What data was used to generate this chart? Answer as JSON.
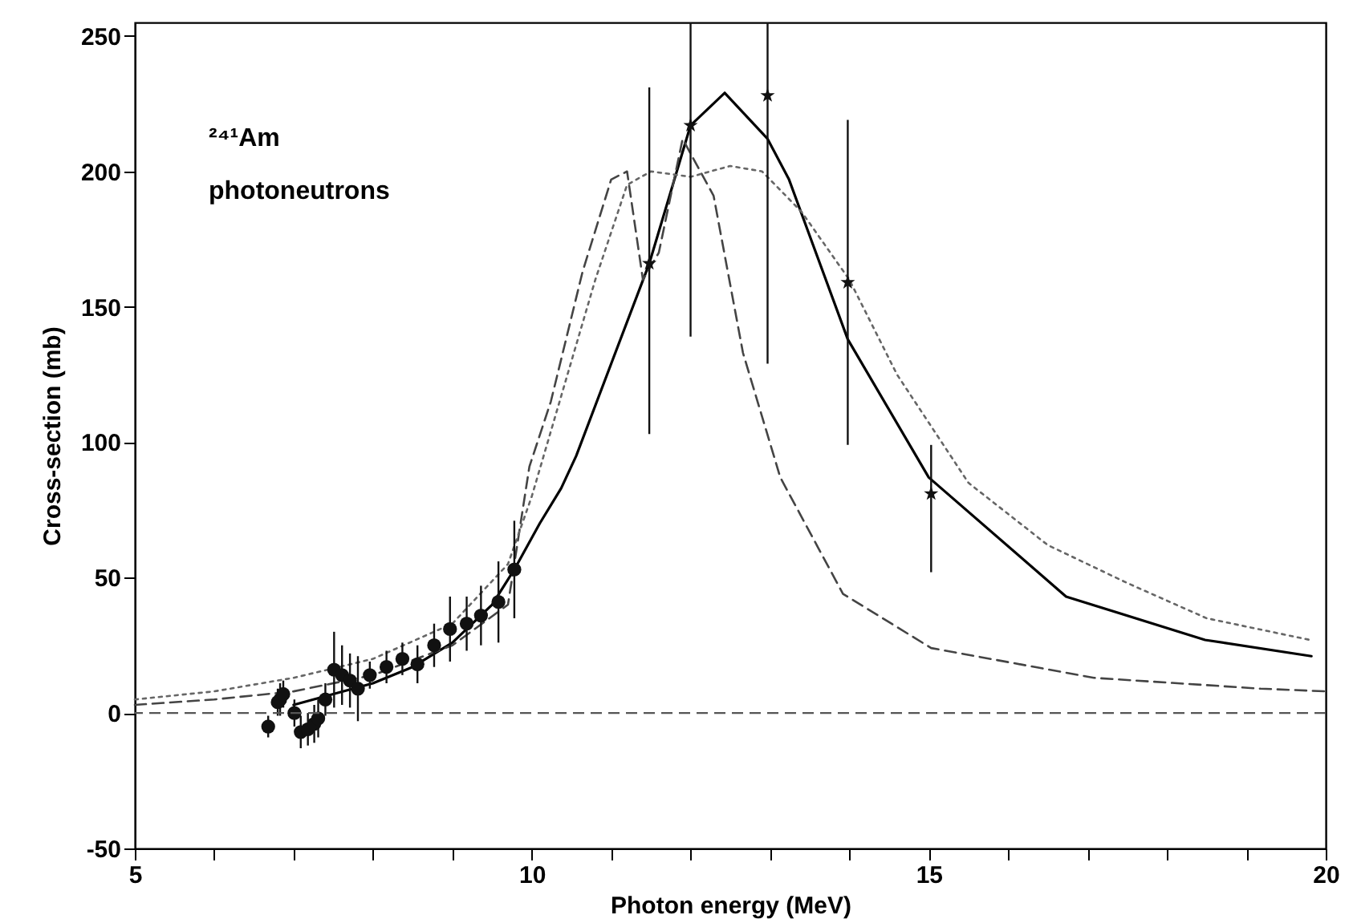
{
  "chart_data": {
    "type": "scatter",
    "xlabel": "Photon energy (MeV)",
    "ylabel": "Cross-section (mb)",
    "annotations": [
      "²⁴¹Am",
      "photoneutrons"
    ],
    "xlim": [
      5,
      20
    ],
    "ylim": [
      -50,
      255
    ],
    "xticks": [
      5,
      {
        "value": 6,
        "label": null
      },
      {
        "value": 7,
        "label": null
      },
      {
        "value": 8,
        "label": null
      },
      {
        "value": 9,
        "label": null
      },
      10,
      {
        "value": 11,
        "label": null
      },
      {
        "value": 12,
        "label": null
      },
      {
        "value": 13,
        "label": null
      },
      {
        "value": 14,
        "label": null
      },
      15,
      {
        "value": 16,
        "label": null
      },
      {
        "value": 17,
        "label": null
      },
      {
        "value": 18,
        "label": null
      },
      {
        "value": 19,
        "label": null
      },
      20
    ],
    "yticks": [
      -50,
      0,
      50,
      100,
      150,
      200,
      250
    ],
    "ref_lines": [
      {
        "axis": "y",
        "value": 0,
        "color": "#555555",
        "line_style": "dashed"
      }
    ],
    "series": [
      {
        "type": "line",
        "color": "#000000",
        "line_style": "solid",
        "x": [
          7.0,
          7.5,
          8.0,
          8.5,
          9.0,
          9.5,
          9.78,
          10.1,
          10.37,
          10.56,
          11.48,
          12.0,
          12.43,
          12.97,
          13.24,
          13.98,
          15.0,
          16.73,
          18.48,
          19.82
        ],
        "values": [
          3,
          7,
          11,
          17,
          26,
          40,
          53,
          70,
          83,
          95,
          166,
          217,
          229,
          212,
          197,
          138,
          87,
          43,
          27,
          21
        ]
      },
      {
        "type": "line",
        "color": "#444444",
        "line_style": "dashed",
        "x": [
          5,
          6,
          7,
          8,
          9,
          9.7,
          9.97,
          10.24,
          10.64,
          11.0,
          11.2,
          11.4,
          11.6,
          11.9,
          12.29,
          12.66,
          13.13,
          13.92,
          15.03,
          17.08,
          19.18,
          20
        ],
        "values": [
          3,
          5,
          8,
          14,
          25,
          40,
          91,
          115,
          163,
          197,
          200,
          160,
          170,
          212,
          191,
          133,
          87,
          44,
          24,
          13,
          9,
          8
        ]
      },
      {
        "type": "line",
        "color": "#666666",
        "line_style": "dotted",
        "x": [
          5,
          6,
          7,
          8,
          9,
          9.7,
          10.0,
          10.4,
          10.8,
          11.2,
          11.5,
          12.0,
          12.5,
          12.9,
          13.4,
          14.0,
          14.6,
          15.5,
          16.5,
          17.5,
          18.5,
          19.8
        ],
        "values": [
          5,
          8,
          13,
          20,
          33,
          55,
          80,
          120,
          160,
          195,
          200,
          198,
          202,
          200,
          185,
          160,
          125,
          85,
          62,
          48,
          35,
          27
        ]
      },
      {
        "color": "#111111",
        "marker": "circle",
        "x": [
          6.68,
          6.8,
          6.83,
          6.87,
          7.01,
          7.09,
          7.18,
          7.26,
          7.31,
          7.4,
          7.51,
          7.61,
          7.71,
          7.81,
          7.96,
          8.17,
          8.37,
          8.56,
          8.77,
          8.97,
          9.18,
          9.36,
          9.58,
          9.78
        ],
        "values": [
          -5,
          4,
          5,
          7,
          0,
          -7,
          -6,
          -4,
          -2,
          5,
          16,
          14,
          12,
          9,
          14,
          17,
          20,
          18,
          25,
          31,
          33,
          36,
          41,
          53
        ],
        "errors": [
          4,
          5,
          6,
          5,
          5,
          6,
          6,
          7,
          7,
          6,
          14,
          11,
          10,
          12,
          5,
          6,
          6,
          7,
          8,
          12,
          10,
          11,
          15,
          18
        ]
      },
      {
        "color": "#111111",
        "marker": "star",
        "x": [
          11.48,
          12.0,
          12.97,
          13.98,
          15.03
        ],
        "values": [
          166,
          217,
          228,
          159,
          81
        ],
        "errors": [
          [
            103,
            231
          ],
          [
            139,
            255
          ],
          [
            129,
            255
          ],
          [
            99,
            219
          ],
          [
            52,
            99
          ]
        ]
      }
    ]
  }
}
